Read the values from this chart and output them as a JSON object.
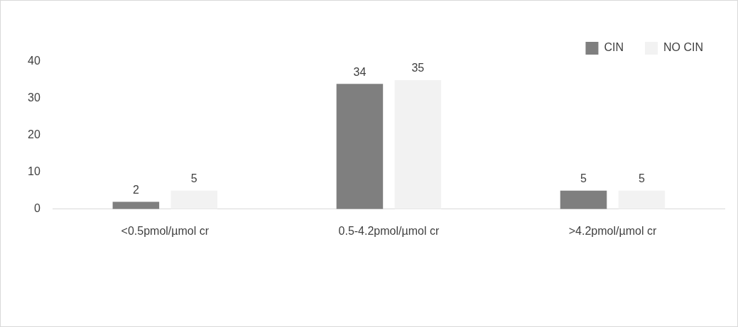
{
  "chart_data": {
    "type": "bar",
    "categories": [
      "<0.5pmol/µmol cr",
      "0.5-4.2pmol/µmol cr",
      ">4.2pmol/µmol cr"
    ],
    "series": [
      {
        "name": "CIN",
        "color": "#7f7f7f",
        "values": [
          2,
          34,
          5
        ]
      },
      {
        "name": "NO CIN",
        "color": "#f2f2f2",
        "values": [
          5,
          35,
          5
        ]
      }
    ],
    "ylim": [
      0,
      40
    ],
    "yticks": [
      0,
      10,
      20,
      30,
      40
    ],
    "grid": false,
    "legend": "top right",
    "data_labels": true
  }
}
